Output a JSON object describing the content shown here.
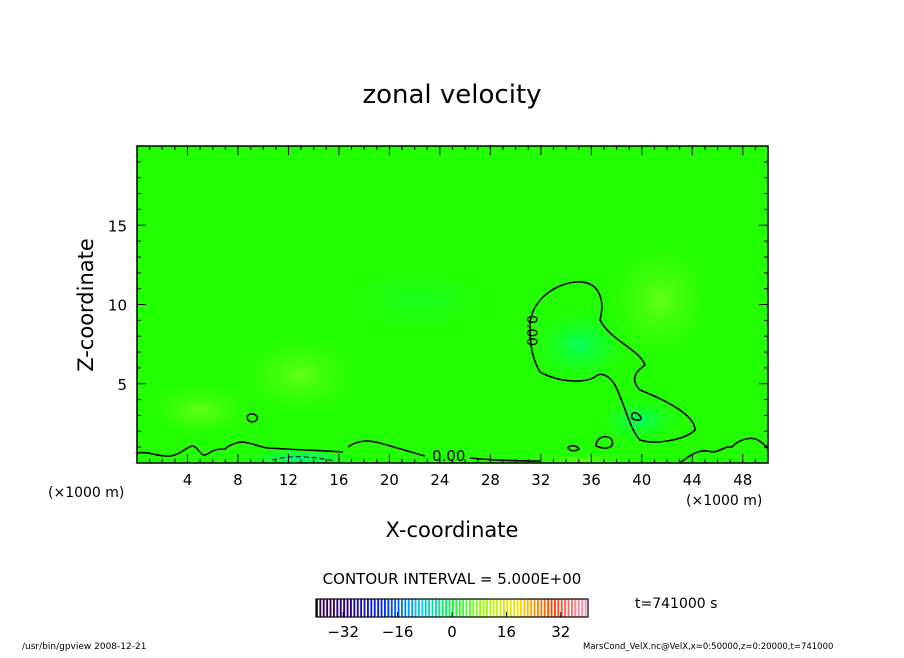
{
  "chart_data": {
    "type": "heatmap",
    "title": "zonal velocity",
    "xlabel": "X-coordinate",
    "ylabel": "Z-coordinate",
    "x_unit_label": "(×1000 m)",
    "x_unit_label_right": "(×1000 m)",
    "xlim": [
      0,
      50
    ],
    "ylim": [
      0,
      20
    ],
    "xticks": [
      4,
      8,
      12,
      16,
      20,
      24,
      28,
      32,
      36,
      40,
      44,
      48
    ],
    "yticks": [
      5,
      10,
      15
    ],
    "contour_label": "0.00",
    "contour_interval_text": "CONTOUR INTERVAL = 5.000E+00",
    "time_label": "t=741000 s",
    "colorbar": {
      "min": -40,
      "max": 40,
      "ticks": [
        -32,
        -16,
        0,
        16,
        32
      ],
      "tick_labels": [
        "−32",
        "−16",
        "0",
        "16",
        "32"
      ]
    },
    "field_description_color_main": "#1fff00",
    "dominant_value": 0
  },
  "footer": {
    "left": "/usr/bin/gpview   2008-12-21",
    "right": "MarsCond_VelX.nc@VelX,x=0:50000,z=0:20000,t=741000"
  }
}
